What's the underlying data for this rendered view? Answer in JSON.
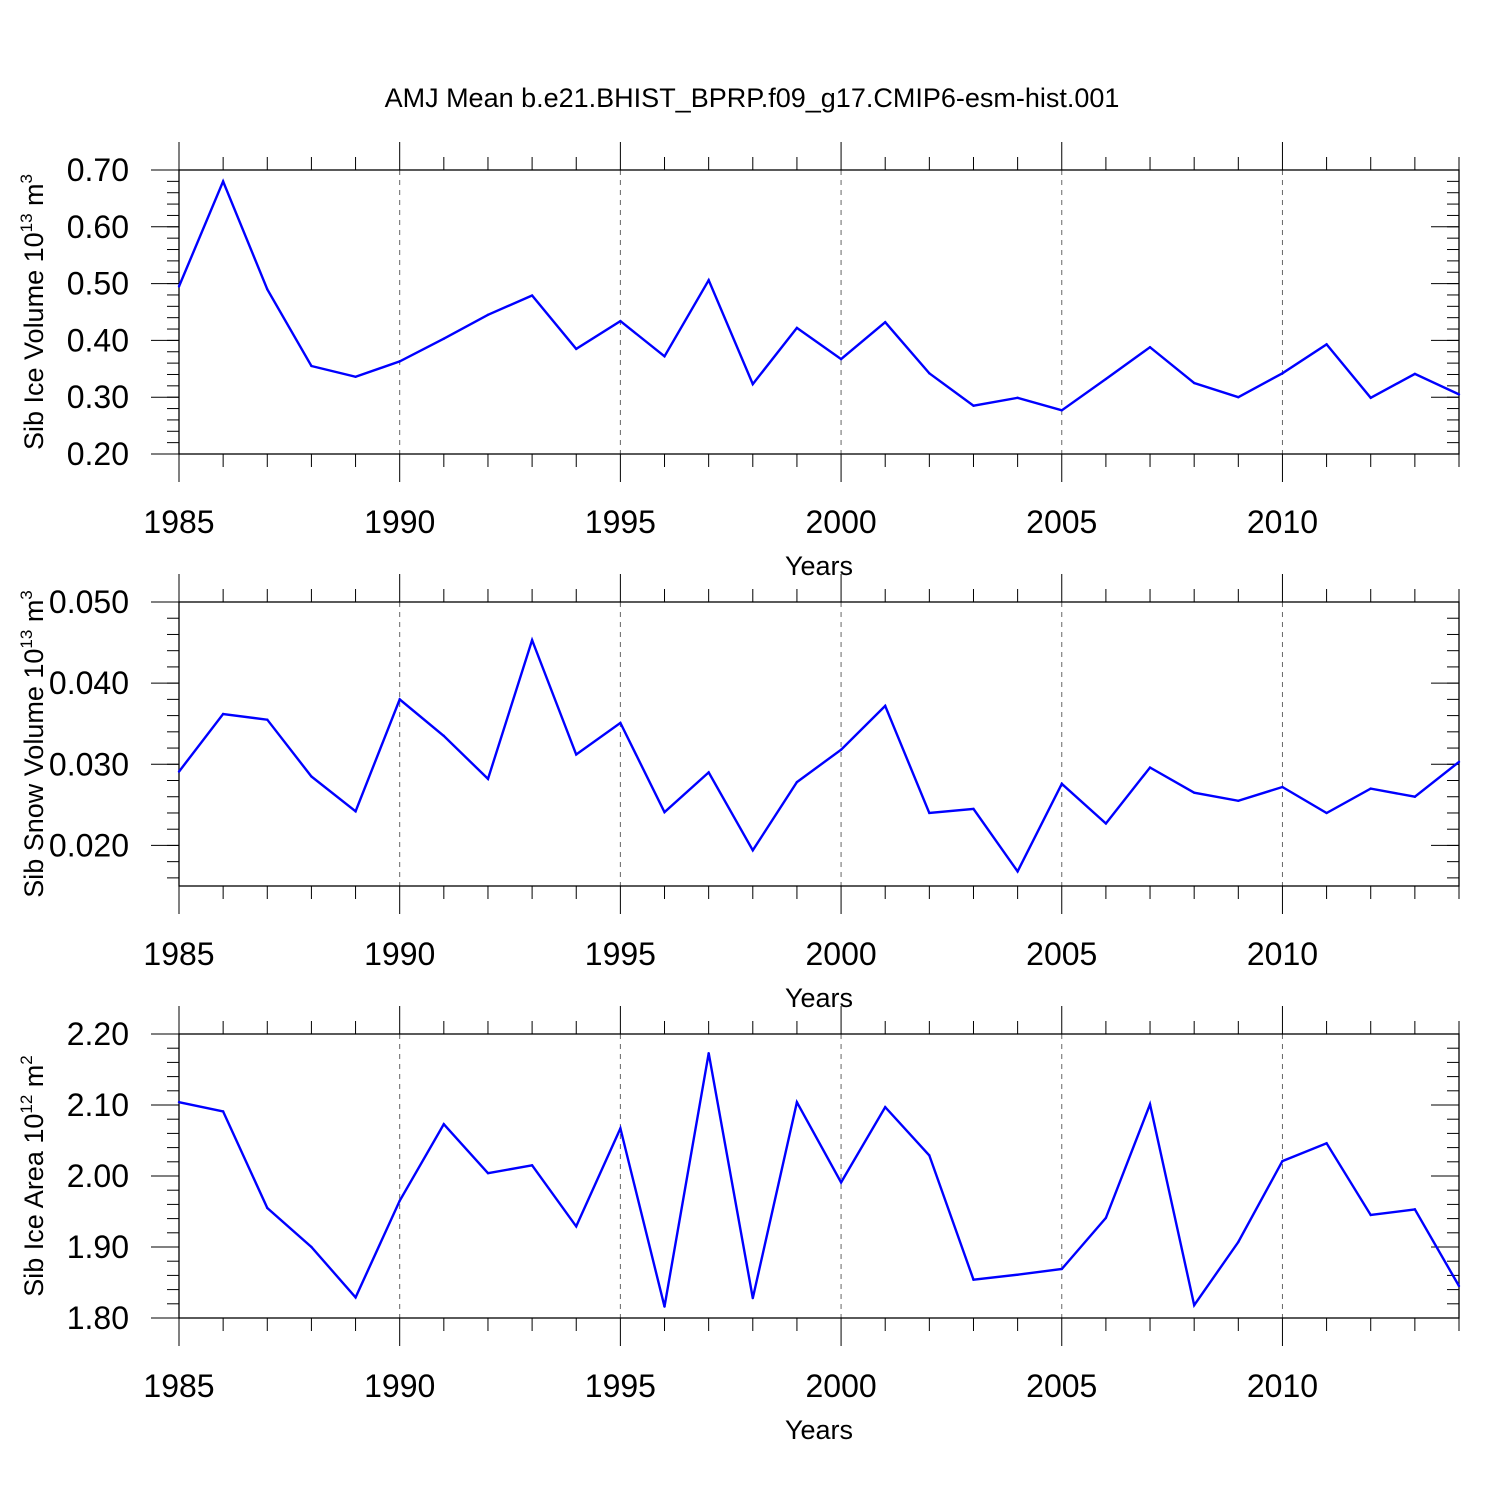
{
  "title": "AMJ Mean b.e21.BHIST_BPRP.f09_g17.CMIP6-esm-hist.001",
  "chart_data": [
    {
      "type": "line",
      "ylabel": {
        "base": "Sib Ice Volume 10",
        "exp": "13",
        "unit": " m",
        "unit_exp": "3"
      },
      "xlabel": "Years",
      "xlim": [
        1985,
        2014
      ],
      "ylim": [
        0.2,
        0.7
      ],
      "yticks": [
        0.2,
        0.3,
        0.4,
        0.5,
        0.6,
        0.7
      ],
      "ytick_labels": [
        "0.20",
        "0.30",
        "0.40",
        "0.50",
        "0.60",
        "0.70"
      ],
      "xticks": [
        1985,
        1990,
        1995,
        2000,
        2005,
        2010
      ],
      "xtick_labels": [
        "1985",
        "1990",
        "1995",
        "2000",
        "2005",
        "2010"
      ],
      "gridlines_x": [
        1990,
        1995,
        2000,
        2005,
        2010
      ],
      "series_color": "#0000ff",
      "x": [
        1985,
        1986,
        1987,
        1988,
        1989,
        1990,
        1991,
        1992,
        1993,
        1994,
        1995,
        1996,
        1997,
        1998,
        1999,
        2000,
        2001,
        2002,
        2003,
        2004,
        2005,
        2006,
        2007,
        2008,
        2009,
        2010,
        2011,
        2012,
        2013,
        2014
      ],
      "values": [
        0.495,
        0.68,
        0.49,
        0.355,
        0.336,
        0.363,
        0.403,
        0.445,
        0.479,
        0.385,
        0.434,
        0.372,
        0.506,
        0.323,
        0.422,
        0.367,
        0.432,
        0.342,
        0.285,
        0.299,
        0.277,
        0.332,
        0.388,
        0.325,
        0.3,
        0.342,
        0.393,
        0.299,
        0.341,
        0.305
      ]
    },
    {
      "type": "line",
      "ylabel": {
        "base": "Sib Snow Volume 10",
        "exp": "13",
        "unit": " m",
        "unit_exp": "3"
      },
      "xlabel": "Years",
      "xlim": [
        1985,
        2014
      ],
      "ylim": [
        0.015,
        0.05
      ],
      "yticks": [
        0.02,
        0.03,
        0.04,
        0.05
      ],
      "ytick_labels": [
        "0.020",
        "0.030",
        "0.040",
        "0.050"
      ],
      "xticks": [
        1985,
        1990,
        1995,
        2000,
        2005,
        2010
      ],
      "xtick_labels": [
        "1985",
        "1990",
        "1995",
        "2000",
        "2005",
        "2010"
      ],
      "gridlines_x": [
        1990,
        1995,
        2000,
        2005,
        2010
      ],
      "series_color": "#0000ff",
      "x": [
        1985,
        1986,
        1987,
        1988,
        1989,
        1990,
        1991,
        1992,
        1993,
        1994,
        1995,
        1996,
        1997,
        1998,
        1999,
        2000,
        2001,
        2002,
        2003,
        2004,
        2005,
        2006,
        2007,
        2008,
        2009,
        2010,
        2011,
        2012,
        2013,
        2014
      ],
      "values": [
        0.0291,
        0.0362,
        0.0355,
        0.0285,
        0.0242,
        0.038,
        0.0335,
        0.0282,
        0.0453,
        0.0312,
        0.0351,
        0.0241,
        0.029,
        0.0194,
        0.0278,
        0.0318,
        0.0372,
        0.024,
        0.0245,
        0.0168,
        0.0276,
        0.0227,
        0.0296,
        0.0265,
        0.0255,
        0.0272,
        0.024,
        0.027,
        0.026,
        0.0303
      ]
    },
    {
      "type": "line",
      "ylabel": {
        "base": "Sib Ice Area 10",
        "exp": "12",
        "unit": " m",
        "unit_exp": "2"
      },
      "xlabel": "Years",
      "xlim": [
        1985,
        2014
      ],
      "ylim": [
        1.8,
        2.2
      ],
      "yticks": [
        1.8,
        1.9,
        2.0,
        2.1,
        2.2
      ],
      "ytick_labels": [
        "1.80",
        "1.90",
        "2.00",
        "2.10",
        "2.20"
      ],
      "xticks": [
        1985,
        1990,
        1995,
        2000,
        2005,
        2010
      ],
      "xtick_labels": [
        "1985",
        "1990",
        "1995",
        "2000",
        "2005",
        "2010"
      ],
      "gridlines_x": [
        1990,
        1995,
        2000,
        2005,
        2010
      ],
      "series_color": "#0000ff",
      "x": [
        1985,
        1986,
        1987,
        1988,
        1989,
        1990,
        1991,
        1992,
        1993,
        1994,
        1995,
        1996,
        1997,
        1998,
        1999,
        2000,
        2001,
        2002,
        2003,
        2004,
        2005,
        2006,
        2007,
        2008,
        2009,
        2010,
        2011,
        2012,
        2013,
        2014
      ],
      "values": [
        2.104,
        2.091,
        1.955,
        1.9,
        1.829,
        1.965,
        2.073,
        2.004,
        2.015,
        1.929,
        2.067,
        1.816,
        2.173,
        1.828,
        2.104,
        1.991,
        2.097,
        2.029,
        1.854,
        1.861,
        1.869,
        1.941,
        2.101,
        1.818,
        1.907,
        2.021,
        2.046,
        1.945,
        1.953,
        1.845
      ]
    }
  ]
}
